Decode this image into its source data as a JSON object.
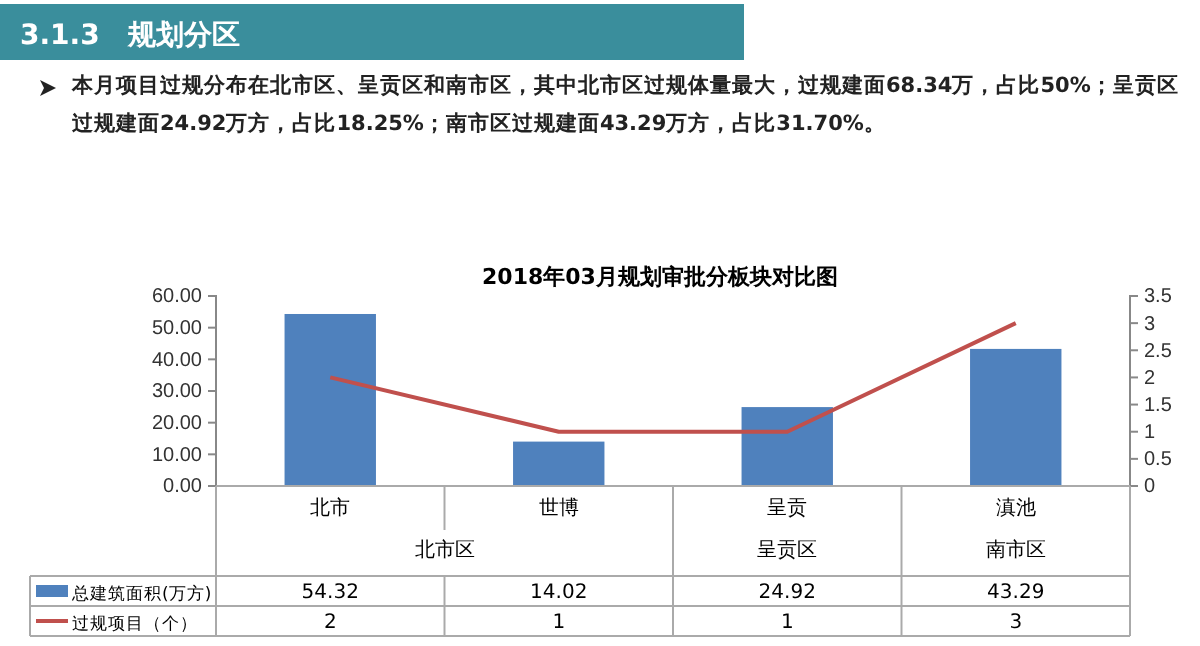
{
  "chart_data": {
    "type": "bar",
    "title": "2018年03月规划审批分板块对比图",
    "categories": [
      "北市",
      "世博",
      "呈贡",
      "滇池"
    ],
    "series": [
      {
        "name": "总建筑面积(万方)",
        "color": "#4f81bd",
        "values": [
          54.32,
          14.02,
          24.92,
          43.29
        ]
      },
      {
        "name": "过规项目（个）",
        "type": "line",
        "axis": "y2",
        "color": "#c0504d",
        "values": [
          2,
          1,
          1,
          3
        ]
      }
    ],
    "ylim": [
      0,
      60
    ],
    "yticks": [
      {
        "value": 0,
        "label": "0.00"
      },
      {
        "value": 10,
        "label": "10.00"
      },
      {
        "value": 20,
        "label": "20.00"
      },
      {
        "value": 30,
        "label": "30.00"
      },
      {
        "value": 40,
        "label": "40.00"
      },
      {
        "value": 50,
        "label": "50.00"
      },
      {
        "value": 60,
        "label": "60.00"
      }
    ],
    "y2lim": [
      0,
      3.5
    ],
    "y2ticks": [
      0,
      0.5,
      1,
      1.5,
      2,
      2.5,
      3,
      3.5
    ],
    "data_labels": true,
    "legend": "bottom",
    "grid": false,
    "annotations": [
      "3.1.3　规划分区",
      "本月项目过规分布在北市区、呈贡区和南市区，其中北市区过规体量最大，过规建面68.34万，占比50%；呈贡区过规建面24.92万方，占比18.25%；南市区过规建面43.29万方，占比31.70%。",
      "北市区",
      "呈贡区",
      "南市区"
    ]
  }
}
